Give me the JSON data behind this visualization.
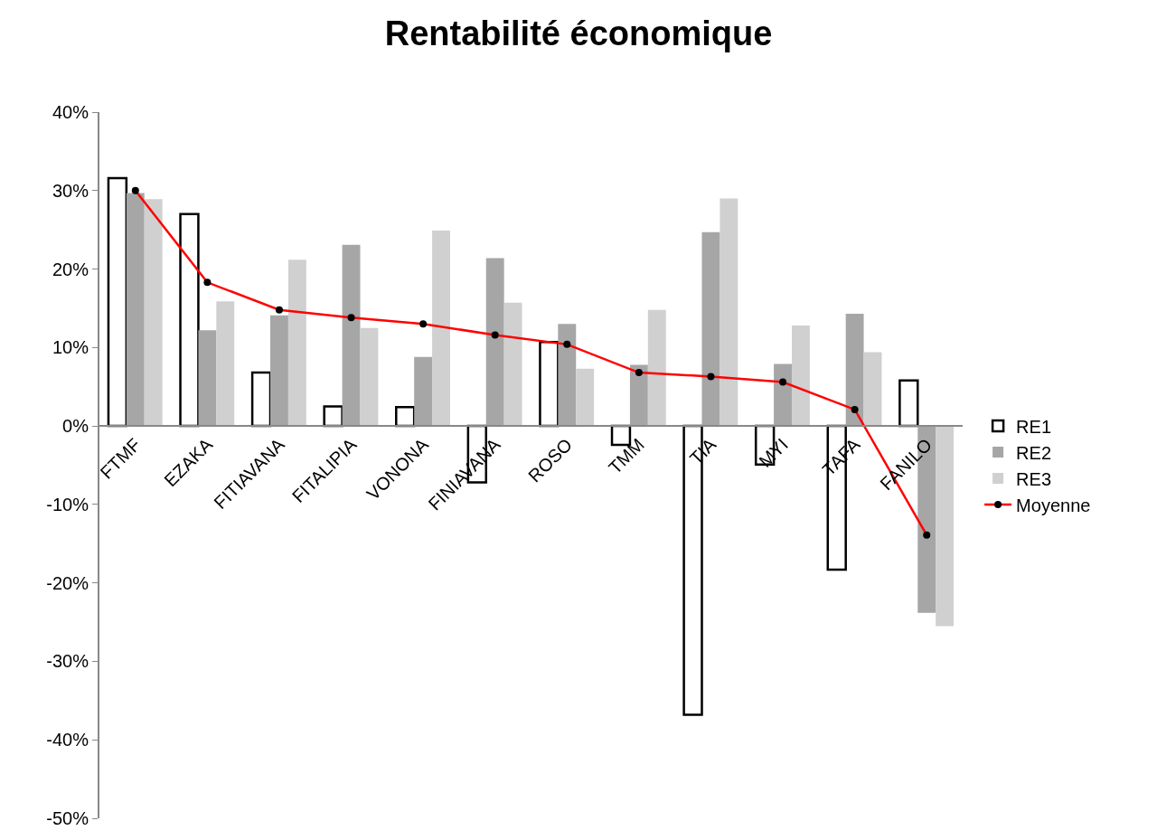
{
  "chart_data": {
    "type": "bar",
    "title": "Rentabilité économique",
    "categories": [
      "FTMF",
      "EZAKA",
      "FITIAVANA",
      "FITALIPIA",
      "VONONA",
      "FINIAVANA",
      "ROSO",
      "TMM",
      "TIA",
      "MYI",
      "TAFA",
      "FANILO"
    ],
    "series": [
      {
        "name": "RE1",
        "color": "#ffffff",
        "values": [
          31.6,
          27.0,
          6.8,
          2.5,
          2.4,
          -7.2,
          10.7,
          -2.4,
          -36.8,
          -4.9,
          -18.3,
          5.8
        ]
      },
      {
        "name": "RE2",
        "color": "#a6a6a6",
        "values": [
          29.7,
          12.2,
          14.1,
          23.1,
          8.8,
          21.4,
          13.0,
          7.8,
          24.7,
          7.9,
          14.3,
          -23.8
        ]
      },
      {
        "name": "RE3",
        "color": "#d0d0d0",
        "values": [
          28.9,
          15.9,
          21.2,
          12.5,
          24.9,
          15.7,
          7.3,
          14.8,
          29.0,
          12.8,
          9.4,
          -25.5
        ]
      },
      {
        "name": "Moyenne",
        "type": "line",
        "color": "#ff0000",
        "marker": "circle",
        "values": [
          30.0,
          18.3,
          14.8,
          13.8,
          13.0,
          11.6,
          10.4,
          6.8,
          6.3,
          5.6,
          2.1,
          -13.9
        ]
      }
    ],
    "ylim": [
      -50,
      40
    ],
    "yticks": [
      {
        "value": -50,
        "label": "-50%"
      },
      {
        "value": -40,
        "label": "-40%"
      },
      {
        "value": -30,
        "label": "-30%"
      },
      {
        "value": -20,
        "label": "-20%"
      },
      {
        "value": -10,
        "label": "-10%"
      },
      {
        "value": 0,
        "label": "0%"
      },
      {
        "value": 10,
        "label": "10%"
      },
      {
        "value": 20,
        "label": "20%"
      },
      {
        "value": 30,
        "label": "30%"
      },
      {
        "value": 40,
        "label": "40%"
      }
    ],
    "grid": false,
    "legend": "right"
  }
}
